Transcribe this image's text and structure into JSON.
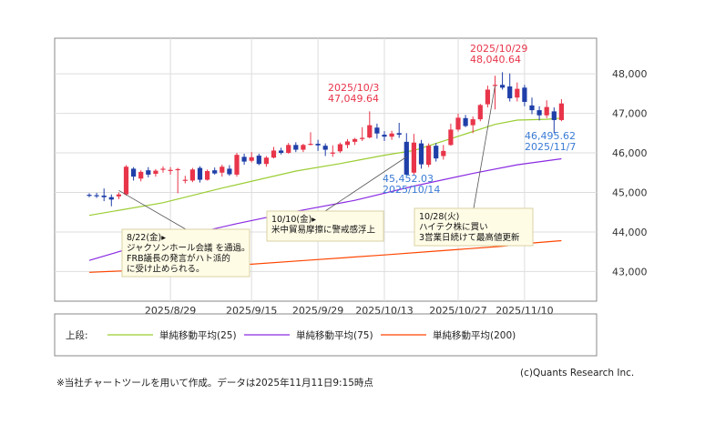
{
  "chart_data": {
    "type": "candlestick",
    "y_ticks": [
      "48,000",
      "47,000",
      "46,000",
      "45,000",
      "44,000",
      "43,000"
    ],
    "y_tick_values": [
      48000,
      47000,
      46000,
      45000,
      44000,
      43000
    ],
    "ylim": [
      42250,
      48900
    ],
    "x_tick_labels": [
      "2025/8/29",
      "2025/9/15",
      "2025/9/29",
      "2025/10/13",
      "2025/10/27",
      "2025/11/10"
    ],
    "x_tick_index": [
      11,
      22,
      31,
      40,
      50,
      59
    ],
    "grid": true,
    "candles": [
      {
        "o": 44940,
        "h": 44980,
        "l": 44880,
        "c": 44920
      },
      {
        "o": 44930,
        "h": 44990,
        "l": 44860,
        "c": 44910
      },
      {
        "o": 44920,
        "h": 45100,
        "l": 44780,
        "c": 44880
      },
      {
        "o": 44880,
        "h": 44950,
        "l": 44650,
        "c": 44820
      },
      {
        "o": 44900,
        "h": 45000,
        "l": 44830,
        "c": 44950
      },
      {
        "o": 44950,
        "h": 45690,
        "l": 44920,
        "c": 45650
      },
      {
        "o": 45600,
        "h": 45640,
        "l": 45300,
        "c": 45400
      },
      {
        "o": 45350,
        "h": 45560,
        "l": 45280,
        "c": 45520
      },
      {
        "o": 45560,
        "h": 45640,
        "l": 45380,
        "c": 45450
      },
      {
        "o": 45470,
        "h": 45590,
        "l": 45400,
        "c": 45550
      },
      {
        "o": 45580,
        "h": 45660,
        "l": 45500,
        "c": 45600
      },
      {
        "o": 45560,
        "h": 45640,
        "l": 45450,
        "c": 45570
      },
      {
        "o": 45580,
        "h": 45620,
        "l": 44980,
        "c": 45590
      },
      {
        "o": 45300,
        "h": 45420,
        "l": 45230,
        "c": 45320
      },
      {
        "o": 45300,
        "h": 45620,
        "l": 45260,
        "c": 45580
      },
      {
        "o": 45620,
        "h": 45660,
        "l": 45250,
        "c": 45320
      },
      {
        "o": 45320,
        "h": 45580,
        "l": 45300,
        "c": 45540
      },
      {
        "o": 45560,
        "h": 45630,
        "l": 45450,
        "c": 45480
      },
      {
        "o": 45500,
        "h": 45700,
        "l": 45400,
        "c": 45650
      },
      {
        "o": 45600,
        "h": 45690,
        "l": 45420,
        "c": 45460
      },
      {
        "o": 45450,
        "h": 46000,
        "l": 45400,
        "c": 45950
      },
      {
        "o": 45900,
        "h": 45980,
        "l": 45700,
        "c": 45780
      },
      {
        "o": 45800,
        "h": 46020,
        "l": 45760,
        "c": 45890
      },
      {
        "o": 45930,
        "h": 45980,
        "l": 45690,
        "c": 45720
      },
      {
        "o": 45720,
        "h": 45920,
        "l": 45650,
        "c": 45880
      },
      {
        "o": 45880,
        "h": 46150,
        "l": 45860,
        "c": 46060
      },
      {
        "o": 46060,
        "h": 46130,
        "l": 45960,
        "c": 46000
      },
      {
        "o": 46000,
        "h": 46250,
        "l": 45980,
        "c": 46200
      },
      {
        "o": 46200,
        "h": 46270,
        "l": 46020,
        "c": 46080
      },
      {
        "o": 46080,
        "h": 46230,
        "l": 46020,
        "c": 46200
      },
      {
        "o": 46220,
        "h": 46520,
        "l": 46190,
        "c": 46230
      },
      {
        "o": 46230,
        "h": 46330,
        "l": 46050,
        "c": 46190
      },
      {
        "o": 46180,
        "h": 46240,
        "l": 45920,
        "c": 46080
      },
      {
        "o": 45980,
        "h": 46190,
        "l": 45900,
        "c": 46010
      },
      {
        "o": 46040,
        "h": 46260,
        "l": 46000,
        "c": 46220
      },
      {
        "o": 46200,
        "h": 46350,
        "l": 46120,
        "c": 46290
      },
      {
        "o": 46280,
        "h": 46380,
        "l": 46200,
        "c": 46350
      },
      {
        "o": 46350,
        "h": 46650,
        "l": 46300,
        "c": 46380
      },
      {
        "o": 46390,
        "h": 47050,
        "l": 46370,
        "c": 46700
      },
      {
        "o": 46640,
        "h": 46740,
        "l": 46360,
        "c": 46490
      },
      {
        "o": 46460,
        "h": 46550,
        "l": 46300,
        "c": 46410
      },
      {
        "o": 46410,
        "h": 46560,
        "l": 46330,
        "c": 46490
      },
      {
        "o": 46500,
        "h": 46760,
        "l": 46380,
        "c": 46460
      },
      {
        "o": 46280,
        "h": 46500,
        "l": 45450,
        "c": 45450
      },
      {
        "o": 45500,
        "h": 46480,
        "l": 45450,
        "c": 46260
      },
      {
        "o": 46240,
        "h": 46330,
        "l": 45600,
        "c": 45710
      },
      {
        "o": 45700,
        "h": 46240,
        "l": 45640,
        "c": 46180
      },
      {
        "o": 46180,
        "h": 46250,
        "l": 45780,
        "c": 45860
      },
      {
        "o": 45920,
        "h": 46200,
        "l": 45830,
        "c": 46050
      },
      {
        "o": 46200,
        "h": 46740,
        "l": 46180,
        "c": 46590
      },
      {
        "o": 46590,
        "h": 46990,
        "l": 46540,
        "c": 46890
      },
      {
        "o": 46880,
        "h": 46960,
        "l": 46650,
        "c": 46680
      },
      {
        "o": 46700,
        "h": 46920,
        "l": 46500,
        "c": 46850
      },
      {
        "o": 46850,
        "h": 47240,
        "l": 46800,
        "c": 47210
      },
      {
        "o": 47230,
        "h": 47700,
        "l": 47150,
        "c": 47600
      },
      {
        "o": 47700,
        "h": 47950,
        "l": 47100,
        "c": 47720
      },
      {
        "o": 47720,
        "h": 48040,
        "l": 47600,
        "c": 47650
      },
      {
        "o": 47680,
        "h": 48010,
        "l": 47300,
        "c": 47380
      },
      {
        "o": 47400,
        "h": 47780,
        "l": 47300,
        "c": 47620
      },
      {
        "o": 47650,
        "h": 47720,
        "l": 47180,
        "c": 47290
      },
      {
        "o": 47200,
        "h": 47400,
        "l": 46980,
        "c": 47080
      },
      {
        "o": 47080,
        "h": 47180,
        "l": 46820,
        "c": 46950
      },
      {
        "o": 46950,
        "h": 47330,
        "l": 46880,
        "c": 47160
      },
      {
        "o": 47050,
        "h": 47150,
        "l": 46500,
        "c": 46830
      },
      {
        "o": 46830,
        "h": 47360,
        "l": 46800,
        "c": 47250
      }
    ],
    "series": [
      {
        "name": "単純移動平均(25)",
        "color": "#9acd32",
        "points": [
          [
            0,
            44420
          ],
          [
            10,
            44740
          ],
          [
            18,
            45110
          ],
          [
            28,
            45540
          ],
          [
            34,
            45730
          ],
          [
            40,
            45940
          ],
          [
            44,
            46060
          ],
          [
            50,
            46420
          ],
          [
            55,
            46720
          ],
          [
            58,
            46830
          ],
          [
            62,
            46850
          ],
          [
            64,
            46880
          ]
        ]
      },
      {
        "name": "単純移動平均(75)",
        "color": "#8a2be2",
        "points": [
          [
            0,
            43280
          ],
          [
            6,
            43610
          ],
          [
            12,
            43870
          ],
          [
            20,
            44210
          ],
          [
            28,
            44520
          ],
          [
            36,
            44800
          ],
          [
            44,
            45160
          ],
          [
            52,
            45480
          ],
          [
            58,
            45700
          ],
          [
            64,
            45850
          ]
        ]
      },
      {
        "name": "単純移動平均(200)",
        "color": "#ff4500",
        "points": [
          [
            0,
            42980
          ],
          [
            10,
            43060
          ],
          [
            20,
            43160
          ],
          [
            30,
            43290
          ],
          [
            40,
            43420
          ],
          [
            48,
            43530
          ],
          [
            56,
            43640
          ],
          [
            60,
            43720
          ],
          [
            64,
            43780
          ]
        ]
      }
    ],
    "annotations": [
      {
        "date": "2025/10/3",
        "value": "47,049.64",
        "color": "#e8354a",
        "index": 38,
        "price": 47049.64,
        "kind": "high"
      },
      {
        "date": "2025/10/29",
        "value": "48,040.64",
        "color": "#e8354a",
        "index": 56,
        "price": 48040.64,
        "kind": "high"
      },
      {
        "date": "2025/10/14",
        "value": "45,452.03",
        "color": "#3a7bd5",
        "index": 43,
        "price": 45452.03,
        "kind": "low"
      },
      {
        "date": "2025/11/7",
        "value": "46,495.62",
        "color": "#3a7bd5",
        "index": 63,
        "price": 46495.62,
        "kind": "low"
      }
    ],
    "notes": [
      {
        "lines": [
          "8/22(金)▸",
          "ジャクソンホール会議 を通過。",
          "FRB議長の発言がハト派的",
          "に受け止められる。"
        ],
        "index": 4,
        "price": 45050
      },
      {
        "lines": [
          "10/10(金)▸",
          "米中貿易摩擦に警戒感浮上"
        ],
        "index": 43,
        "price": 45900
      },
      {
        "lines": [
          "10/28(火)",
          "ハイテク株に買い",
          "3営業日続けて最高値更新"
        ],
        "index": 55,
        "price": 47700
      }
    ]
  },
  "legend": {
    "prefix": "上段:",
    "items": [
      {
        "label": "単純移動平均(25)",
        "color": "#9acd32"
      },
      {
        "label": "単純移動平均(75)",
        "color": "#8a2be2"
      },
      {
        "label": "単純移動平均(200)",
        "color": "#ff4500"
      }
    ]
  },
  "footer": {
    "note": "※当社チャートツールを用いて作成。データは2025年11月11日9:15時点",
    "copyright": "(c)Quants Research Inc."
  },
  "colors": {
    "up": "#e8354a",
    "down": "#1f3fa8",
    "grid": "#dddddd",
    "note_fill": "#fffce6",
    "note_stroke": "#d8d2a4"
  }
}
